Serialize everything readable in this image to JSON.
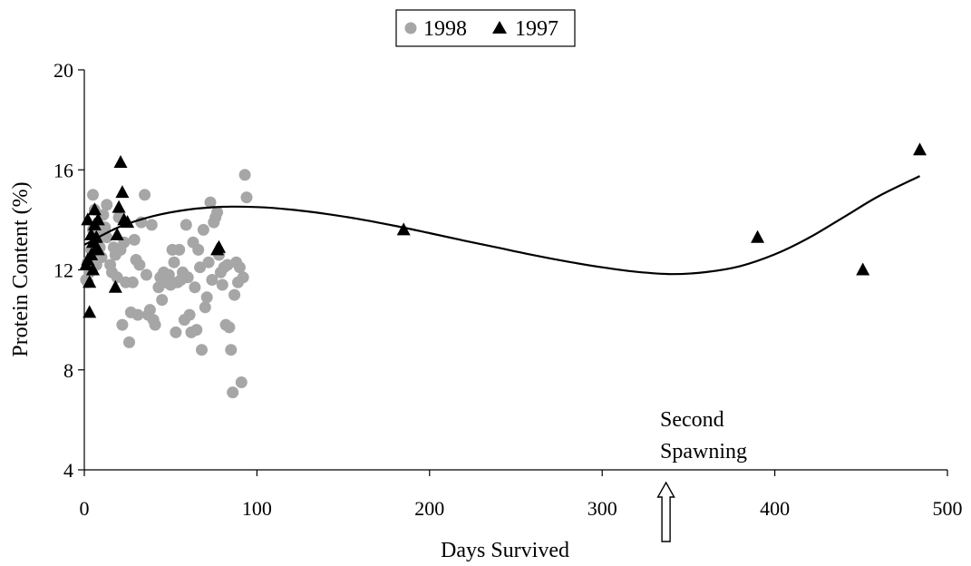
{
  "chart_data": {
    "type": "scatter",
    "xlabel": "Days Survived",
    "ylabel": "Protein Content (%)",
    "xlim": [
      0,
      500
    ],
    "ylim": [
      4,
      20
    ],
    "x_ticks": [
      "0",
      "100",
      "200",
      "300",
      "400",
      "500"
    ],
    "y_ticks": [
      "4",
      "8",
      "12",
      "16",
      "20"
    ],
    "grid": false,
    "legend_position": "top-center",
    "series": [
      {
        "name": "1998",
        "marker": "circle",
        "color": "#a6a6a6",
        "points": [
          [
            1,
            11.6
          ],
          [
            2,
            12.3
          ],
          [
            2,
            11.5
          ],
          [
            3,
            12.1
          ],
          [
            3,
            11.9
          ],
          [
            4,
            12.8
          ],
          [
            4,
            12.4
          ],
          [
            5,
            15.0
          ],
          [
            5,
            13.6
          ],
          [
            6,
            14.4
          ],
          [
            7,
            12.2
          ],
          [
            7,
            13.2
          ],
          [
            8,
            13.6
          ],
          [
            8,
            12.6
          ],
          [
            9,
            12.9
          ],
          [
            10,
            13.4
          ],
          [
            10,
            12.5
          ],
          [
            11,
            14.2
          ],
          [
            12,
            13.7
          ],
          [
            13,
            14.6
          ],
          [
            13,
            13.3
          ],
          [
            15,
            12.2
          ],
          [
            16,
            11.9
          ],
          [
            17,
            12.9
          ],
          [
            18,
            12.6
          ],
          [
            19,
            11.7
          ],
          [
            20,
            14.1
          ],
          [
            21,
            12.8
          ],
          [
            22,
            9.8
          ],
          [
            23,
            13.1
          ],
          [
            24,
            11.5
          ],
          [
            26,
            9.1
          ],
          [
            27,
            10.3
          ],
          [
            28,
            11.5
          ],
          [
            29,
            13.2
          ],
          [
            30,
            12.4
          ],
          [
            31,
            10.2
          ],
          [
            32,
            12.2
          ],
          [
            33,
            13.9
          ],
          [
            35,
            15.0
          ],
          [
            36,
            11.8
          ],
          [
            37,
            10.2
          ],
          [
            38,
            10.4
          ],
          [
            39,
            13.8
          ],
          [
            40,
            10.0
          ],
          [
            41,
            9.8
          ],
          [
            43,
            11.3
          ],
          [
            44,
            11.7
          ],
          [
            45,
            10.8
          ],
          [
            46,
            11.9
          ],
          [
            47,
            11.5
          ],
          [
            48,
            11.6
          ],
          [
            49,
            11.8
          ],
          [
            50,
            11.4
          ],
          [
            51,
            12.8
          ],
          [
            52,
            12.3
          ],
          [
            53,
            9.5
          ],
          [
            54,
            11.5
          ],
          [
            55,
            12.8
          ],
          [
            56,
            11.6
          ],
          [
            57,
            11.9
          ],
          [
            58,
            10.0
          ],
          [
            59,
            13.8
          ],
          [
            60,
            11.7
          ],
          [
            61,
            10.2
          ],
          [
            62,
            9.5
          ],
          [
            63,
            13.1
          ],
          [
            64,
            11.3
          ],
          [
            65,
            9.6
          ],
          [
            66,
            12.8
          ],
          [
            67,
            12.1
          ],
          [
            68,
            8.8
          ],
          [
            69,
            13.6
          ],
          [
            70,
            10.5
          ],
          [
            71,
            10.9
          ],
          [
            72,
            12.3
          ],
          [
            73,
            14.7
          ],
          [
            74,
            11.6
          ],
          [
            75,
            13.9
          ],
          [
            76,
            14.1
          ],
          [
            77,
            14.3
          ],
          [
            78,
            12.6
          ],
          [
            79,
            11.9
          ],
          [
            80,
            11.4
          ],
          [
            81,
            12.1
          ],
          [
            82,
            9.8
          ],
          [
            83,
            12.2
          ],
          [
            84,
            9.7
          ],
          [
            85,
            8.8
          ],
          [
            86,
            7.1
          ],
          [
            87,
            11.0
          ],
          [
            88,
            12.3
          ],
          [
            89,
            11.5
          ],
          [
            90,
            12.1
          ],
          [
            91,
            7.5
          ],
          [
            92,
            11.7
          ],
          [
            93,
            15.8
          ],
          [
            94,
            14.9
          ]
        ]
      },
      {
        "name": "1997",
        "marker": "triangle",
        "color": "#000000",
        "points": [
          [
            1,
            12.2
          ],
          [
            2,
            12.4
          ],
          [
            2,
            14.0
          ],
          [
            3,
            10.3
          ],
          [
            3,
            11.5
          ],
          [
            4,
            12.6
          ],
          [
            4,
            13.4
          ],
          [
            5,
            12.0
          ],
          [
            5,
            13.1
          ],
          [
            6,
            13.8
          ],
          [
            6,
            14.4
          ],
          [
            7,
            12.9
          ],
          [
            7,
            13.3
          ],
          [
            8,
            12.8
          ],
          [
            8,
            14.0
          ],
          [
            18,
            11.3
          ],
          [
            19,
            13.4
          ],
          [
            20,
            14.5
          ],
          [
            21,
            16.3
          ],
          [
            22,
            15.1
          ],
          [
            23,
            14.0
          ],
          [
            25,
            13.9
          ],
          [
            77,
            12.8
          ],
          [
            78,
            12.9
          ],
          [
            185,
            13.6
          ],
          [
            390,
            13.3
          ],
          [
            451,
            12.0
          ],
          [
            484,
            16.8
          ]
        ]
      }
    ],
    "trendline": {
      "type": "polynomial",
      "x": [
        0,
        20,
        40,
        60,
        80,
        100,
        120,
        140,
        160,
        180,
        200,
        220,
        240,
        260,
        280,
        300,
        320,
        340,
        360,
        380,
        400,
        420,
        440,
        460,
        484
      ],
      "y": [
        13.0,
        13.71,
        14.15,
        14.41,
        14.52,
        14.51,
        14.41,
        14.24,
        14.02,
        13.76,
        13.47,
        13.17,
        12.88,
        12.59,
        12.33,
        12.1,
        11.92,
        11.83,
        11.91,
        12.15,
        12.62,
        13.29,
        14.11,
        14.94,
        15.75
      ]
    },
    "annotation": {
      "text_line1": "Second",
      "text_line2": "Spawning",
      "x": 337
    }
  }
}
